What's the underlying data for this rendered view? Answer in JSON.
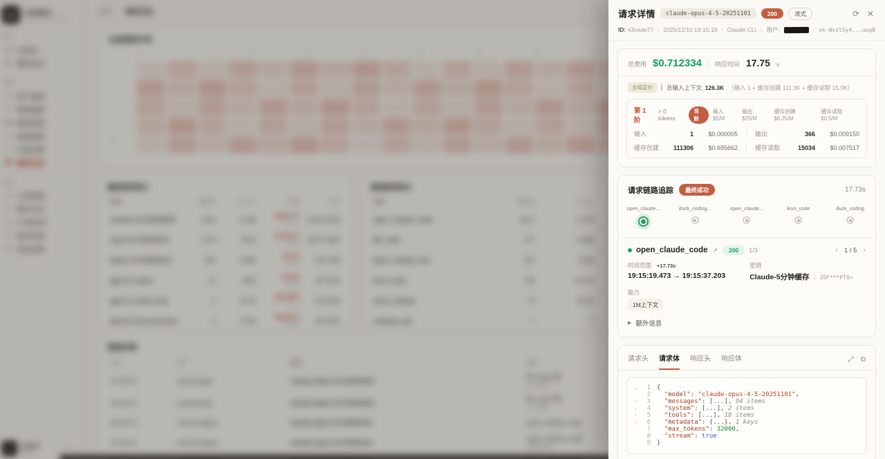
{
  "drawer": {
    "title": "请求详情",
    "model_badge": "claude-opus-4-5-20251101",
    "status_badge": "200",
    "stream_badge": "流式",
    "refresh_icon": "⟳",
    "close_icon": "✕",
    "meta": {
      "id_label": "ID:",
      "id": "43cede77",
      "time": "2025/12/10 19:15:19",
      "client": "Claude CLI",
      "user_label": "用户:",
      "api_key": "sk-WvzlSy4...uwgB"
    },
    "cost_card": {
      "total_label": "总费用",
      "total_value": "$0.712334",
      "latency_label": "响应时间",
      "latency_value": "17.75",
      "latency_unit": "s",
      "pricing_badge": "全局定价",
      "context_label": "总输入上下文:",
      "context_value": "126.3K",
      "context_detail": "（输入 1 + 缓存创建 111.3K + 缓存读取 15.0K）",
      "tier": {
        "name": "第 1 阶",
        "range": "> 0 tokens",
        "current_badge": "当前",
        "rates": [
          "输入 $5/M",
          "输出 $25/M",
          "缓存创建 $6.25/M",
          "缓存读取 $0.5/M"
        ],
        "cells": [
          {
            "label": "输入",
            "tokens": "1",
            "cost": "$0.000005"
          },
          {
            "label": "输出",
            "tokens": "366",
            "cost": "$0.009150"
          },
          {
            "label": "缓存创建",
            "tokens": "111306",
            "cost": "$0.695662"
          },
          {
            "label": "缓存读取",
            "tokens": "15034",
            "cost": "$0.007517"
          }
        ]
      }
    },
    "trace_card": {
      "title": "请求链路追踪",
      "status_badge": "最终成功",
      "duration": "17.73s",
      "nodes": [
        {
          "label": "open_claude...",
          "state": "ok"
        },
        {
          "label": "duck_coding...",
          "state": "idle"
        },
        {
          "label": "open_claude...",
          "state": "idle"
        },
        {
          "label": "ikun_code",
          "state": "idle"
        },
        {
          "label": "duck_coding",
          "state": "idle"
        }
      ],
      "detail": {
        "name": "open_claude_code",
        "ext_icon": "↗",
        "status": "200",
        "attempt": "1/3",
        "prev_icon": "‹",
        "page": "1 / 5",
        "next_icon": "›",
        "time_label": "时间范围",
        "time_delta": "+17.73s",
        "time_range": "19:15:19.473 → 19:15:37.203",
        "key_label": "密钥",
        "key_name": "Claude-5分钟缓存",
        "key_mask": "Z0F***PT0=",
        "cap_label": "能力",
        "cap_chip": "1M上下文",
        "extra_toggle": "额外信息"
      }
    },
    "payload_card": {
      "tabs": [
        "请求头",
        "请求体",
        "响应头",
        "响应体"
      ],
      "active_tab": "请求体",
      "expand_icon": "⤢",
      "copy_icon": "⧉",
      "code_lines": [
        {
          "n": "1",
          "ch": "⌄",
          "seg": [
            [
              "cp",
              "{"
            ]
          ]
        },
        {
          "n": "2",
          "ch": "",
          "seg": [
            [
              "ck",
              "\"model\""
            ],
            [
              "cp",
              ": "
            ],
            [
              "cstr",
              "\"claude-opus-4-5-20251101\""
            ],
            [
              "cp",
              ","
            ]
          ]
        },
        {
          "n": "3",
          "ch": "›",
          "seg": [
            [
              "ck",
              "\"messages\""
            ],
            [
              "cp",
              ": [...], "
            ],
            [
              "ci",
              "94 items"
            ]
          ]
        },
        {
          "n": "4",
          "ch": "›",
          "seg": [
            [
              "ck",
              "\"system\""
            ],
            [
              "cp",
              ": [...], "
            ],
            [
              "ci",
              "2 items"
            ]
          ]
        },
        {
          "n": "5",
          "ch": "›",
          "seg": [
            [
              "ck",
              "\"tools\""
            ],
            [
              "cp",
              ": [...], "
            ],
            [
              "ci",
              "18 items"
            ]
          ]
        },
        {
          "n": "6",
          "ch": "›",
          "seg": [
            [
              "ck",
              "\"metadata\""
            ],
            [
              "cp",
              ": {...}, "
            ],
            [
              "ci",
              "1 keys"
            ]
          ]
        },
        {
          "n": "7",
          "ch": "",
          "seg": [
            [
              "ck",
              "\"max_tokens\""
            ],
            [
              "cp",
              ": "
            ],
            [
              "cn",
              "32000"
            ],
            [
              "cp",
              ","
            ]
          ]
        },
        {
          "n": "8",
          "ch": "",
          "seg": [
            [
              "ck",
              "\"stream\""
            ],
            [
              "cp",
              ": "
            ],
            [
              "cb",
              "true"
            ]
          ]
        },
        {
          "n": "9",
          "ch": "",
          "seg": [
            [
              "cp",
              "}"
            ]
          ]
        }
      ]
    }
  },
  "background": {
    "sidebar": {
      "logo_letter": "A",
      "brand": "AstMan",
      "brand_sub": "World Class LLM Gateway",
      "groups": [
        {
          "label": "概览",
          "items": [
            {
              "icon": "▤",
              "label": "仪表盘"
            },
            {
              "icon": "◉",
              "label": "模型监控"
            }
          ]
        },
        {
          "label": "管理",
          "items": [
            {
              "icon": "◳",
              "label": "用户管理"
            },
            {
              "icon": "⚿",
              "label": "密钥管理"
            },
            {
              "icon": "▦",
              "label": "模型管理"
            },
            {
              "icon": "⛁",
              "label": "渠道管理"
            },
            {
              "icon": "✎",
              "label": "价格设置"
            },
            {
              "icon": "≣",
              "label": "请求日志",
              "active": true
            }
          ]
        },
        {
          "label": "系统",
          "items": [
            {
              "icon": "◫",
              "label": "公告管理"
            },
            {
              "icon": "≡",
              "label": "操作日志"
            },
            {
              "icon": "⊘",
              "label": "IP 黑名单"
            },
            {
              "icon": "⟳",
              "label": "备份恢复"
            },
            {
              "icon": "⚙",
              "label": "系统设置"
            }
          ]
        }
      ],
      "user_name": "admin",
      "user_sub": "管理员",
      "collapse_icon": "«",
      "theme_icon": "◐"
    },
    "breadcrumb": {
      "home": "首页",
      "current": "请求日志"
    },
    "heatmap": {
      "title": "全局请求分布",
      "ticks": [
        "0",
        "2",
        "4",
        "6",
        "8",
        "10",
        "12",
        "14",
        "16",
        "18",
        "20",
        "22"
      ],
      "ylabels": [
        "5",
        "10"
      ]
    },
    "model_table": {
      "title": "模型使用统计",
      "headers": [
        "模型",
        "请求数",
        "Tokens",
        "费用",
        "均价"
      ],
      "cols": [
        "col-name",
        "col-num",
        "col-num",
        "col-cost",
        "col-num"
      ],
      "rows": [
        [
          "sonnet-4-5-20250929",
          "1822",
          "1.13M",
          {
            "m": "$243.77",
            "s": "¥43.74",
            "red": true
          },
          "$143.75/M"
        ],
        [
          "opus-4-5-20251101",
          "1754",
          "872k",
          {
            "m": "$746.27",
            "s": "¥3.05",
            "red": true
          },
          "$357.08/M"
        ],
        [
          "haiku-4-5-20251001",
          "824",
          "1.28M",
          {
            "m": "$3.47",
            "s": "¥0.86",
            "red": true
          },
          "$2.70/M"
        ],
        [
          "gpt-5.1-codex",
          "20",
          "430k",
          {
            "m": "$0.23",
            "s": "¥0.45",
            "red": true
          },
          "$1.43/M"
        ],
        [
          "gpt-5.1-codex-max",
          "5",
          "22.4k",
          {
            "m": "$0.0067",
            "s": "¥0.01",
            "red": true
          },
          "$1.45/M"
        ],
        [
          "gemini-3-pro-preview",
          "6",
          "13.8k",
          {
            "m": "$0.0017",
            "s": "¥0.07",
            "red": true
          },
          "$2.43/M"
        ],
        [
          "gemini-3-pro-image-preview",
          "1",
          "0",
          {
            "m": "$0.00",
            "s": "¥0.00",
            "red": true
          },
          "—"
        ]
      ]
    },
    "channel_table": {
      "title": "渠道使用统计",
      "headers": [
        "渠道",
        "请求数",
        "Tokens",
        "费用",
        "成功率",
        "平均耗时"
      ],
      "cols": [
        "col-name",
        "col-num",
        "col-num",
        "col-cost",
        "col-num",
        "col-num"
      ],
      "rows": [
        [
          "open_claude_code",
          "2417",
          "1.27M",
          {
            "m": "$370.24",
            "s": "¥16.44",
            "red": true
          },
          "98.42%",
          "16.44s"
        ],
        [
          "88_code",
          "471",
          "1.06M",
          {
            "m": "$3.48",
            "s": "¥0.93",
            "red": true
          },
          "88.03%",
          "9.11s"
        ],
        [
          "duck_coding_free",
          "337",
          "620k",
          {
            "m": "$14.45",
            "s": "¥0.62",
            "red": true
          },
          "76.55%",
          "6.47s"
        ],
        [
          "ikun_code",
          "138",
          "112.9k",
          {
            "m": "$0.0473",
            "s": "¥0.052",
            "red": true
          },
          "76.76%",
          "7.51s"
        ],
        [
          "duck_coding",
          "74",
          "59.7k",
          {
            "m": "$0.0396",
            "s": "¥0.015",
            "red": true
          },
          "45.80%",
          "5.15s"
        ],
        [
          "codeing_api",
          "1",
          "0",
          {
            "m": "$0.00",
            "s": "¥0.00",
            "red": true
          },
          "0%",
          "101.02s"
        ]
      ]
    },
    "usage_table": {
      "title": "使用记录",
      "headers": [
        "时间",
        "用户",
        "模型",
        "渠道",
        "API密钥"
      ],
      "cols": [
        "u-col-t",
        "u-col-u",
        "u-col-m",
        "u-col-c",
        "u-col-k"
      ],
      "rows": [
        [
          "19:15:19",
          "yuanhongliu",
          "claude-haiku-4-5-20251001",
          {
            "m": "88_code 🦆",
            "s": "haiku路由"
          },
          {
            "btn": "查看详情"
          }
        ],
        [
          "19:15:19",
          "yuanhongliu",
          "claude-haiku-4-5-20251001",
          {
            "m": "88_code 🦆",
            "s": "haiku路由"
          },
          {
            "btn": "查看详情"
          }
        ],
        [
          "19:15:19",
          "chenzhuaiguo",
          "claude-opus-4-5-20251101",
          {
            "m": "open_claude_code",
            "s": ""
          },
          {
            "btn": "查看详情"
          }
        ],
        [
          "19:15:19",
          "chenzhuaiguo",
          "claude-opus-4-5-20251101",
          {
            "m": "open_claude_code",
            "s": "含重试记录"
          },
          {
            "btn": "查看详情"
          }
        ],
        [
          "19:15:19",
          "chenzhuaiguo",
          "claude-opus-4-5-20251101",
          {
            "m": "open_claude_code",
            "s": ""
          },
          {
            "btn": "查看详情"
          }
        ]
      ]
    }
  },
  "colors": {
    "accent_terracotta": "#c25e42",
    "success_green": "#1fa357",
    "cost_green": "#13a254",
    "drawer_bg": "#faf9f5"
  }
}
